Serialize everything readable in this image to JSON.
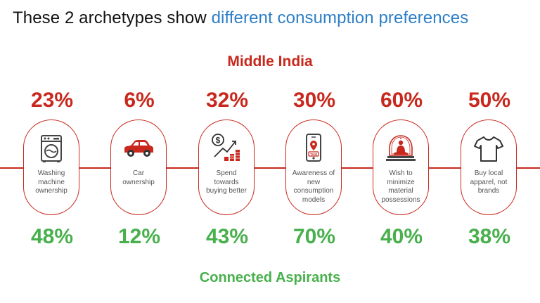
{
  "title": {
    "prefix": "These 2 archetypes show ",
    "highlight": "different consumption preferences"
  },
  "groups": {
    "top": "Middle India",
    "bottom": "Connected Aspirants"
  },
  "colors": {
    "middle_india": "#c8281d",
    "connected_aspirants": "#48b04c",
    "title_highlight": "#2e7fc7"
  },
  "items": [
    {
      "icon": "washing-machine-icon",
      "label": "Washing\nmachine\nownership",
      "middle_india": "23%",
      "connected_aspirants": "48%"
    },
    {
      "icon": "car-icon",
      "label": "Car\nownership",
      "middle_india": "6%",
      "connected_aspirants": "12%"
    },
    {
      "icon": "money-growth-icon",
      "label": "Spend\ntowards\nbuying better",
      "middle_india": "32%",
      "connected_aspirants": "43%"
    },
    {
      "icon": "taxi-app-icon",
      "label": "Awareness of\nnew\nconsumption\nmodels",
      "middle_india": "30%",
      "connected_aspirants": "70%"
    },
    {
      "icon": "buddha-icon",
      "label": "Wish to\nminimize\nmaterial\npossessions",
      "middle_india": "60%",
      "connected_aspirants": "40%"
    },
    {
      "icon": "t-shirt-icon",
      "label": "Buy local\napparel, not\nbrands",
      "middle_india": "50%",
      "connected_aspirants": "38%"
    }
  ]
}
